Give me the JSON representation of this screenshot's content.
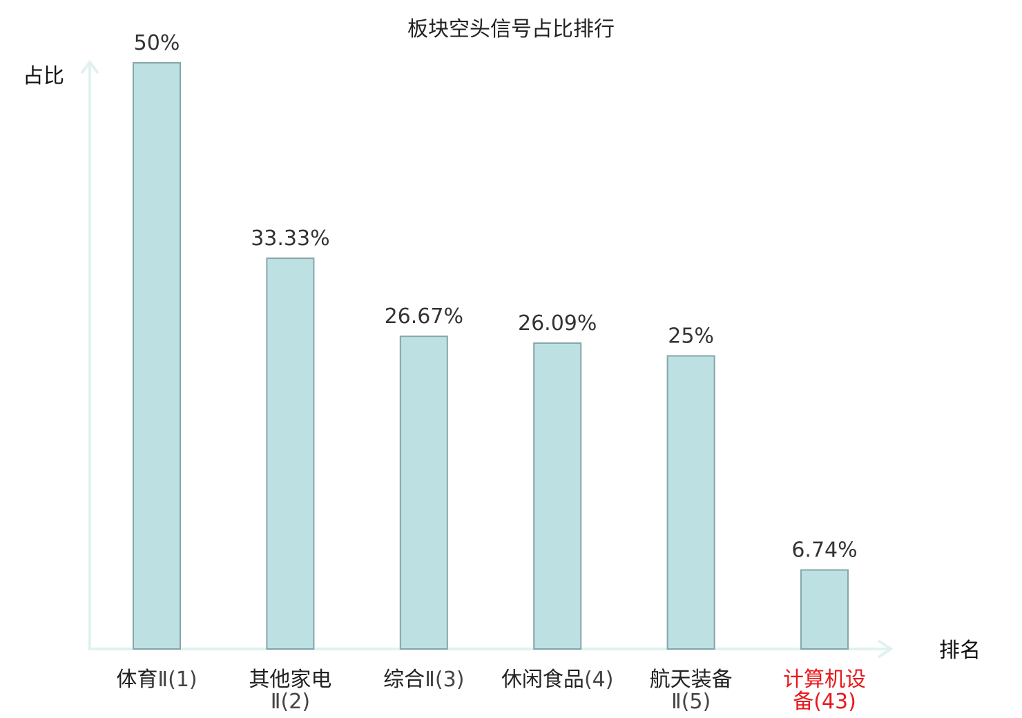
{
  "chart_data": {
    "type": "bar",
    "title": "板块空头信号占比排行",
    "ylabel": "占比",
    "xlabel": "排名",
    "categories": [
      [
        "体育Ⅱ(1)"
      ],
      [
        "其他家电",
        "Ⅱ(2)"
      ],
      [
        "综合Ⅱ(3)"
      ],
      [
        "休闲食品(4)"
      ],
      [
        "航天装备",
        "Ⅱ(5)"
      ],
      [
        "计算机设",
        "备(43)"
      ]
    ],
    "values": [
      50,
      33.33,
      26.67,
      26.09,
      25,
      6.74
    ],
    "value_labels": [
      "50%",
      "33.33%",
      "26.67%",
      "26.09%",
      "25%",
      "6.74%"
    ],
    "highlight_index": 5,
    "colors": {
      "bar_fill": "#bde0e3",
      "bar_stroke": "#86a6a9",
      "axis": "#dff2ef",
      "highlight_text": "#e8181c"
    },
    "grid": false,
    "ylim": [
      0,
      50
    ]
  }
}
